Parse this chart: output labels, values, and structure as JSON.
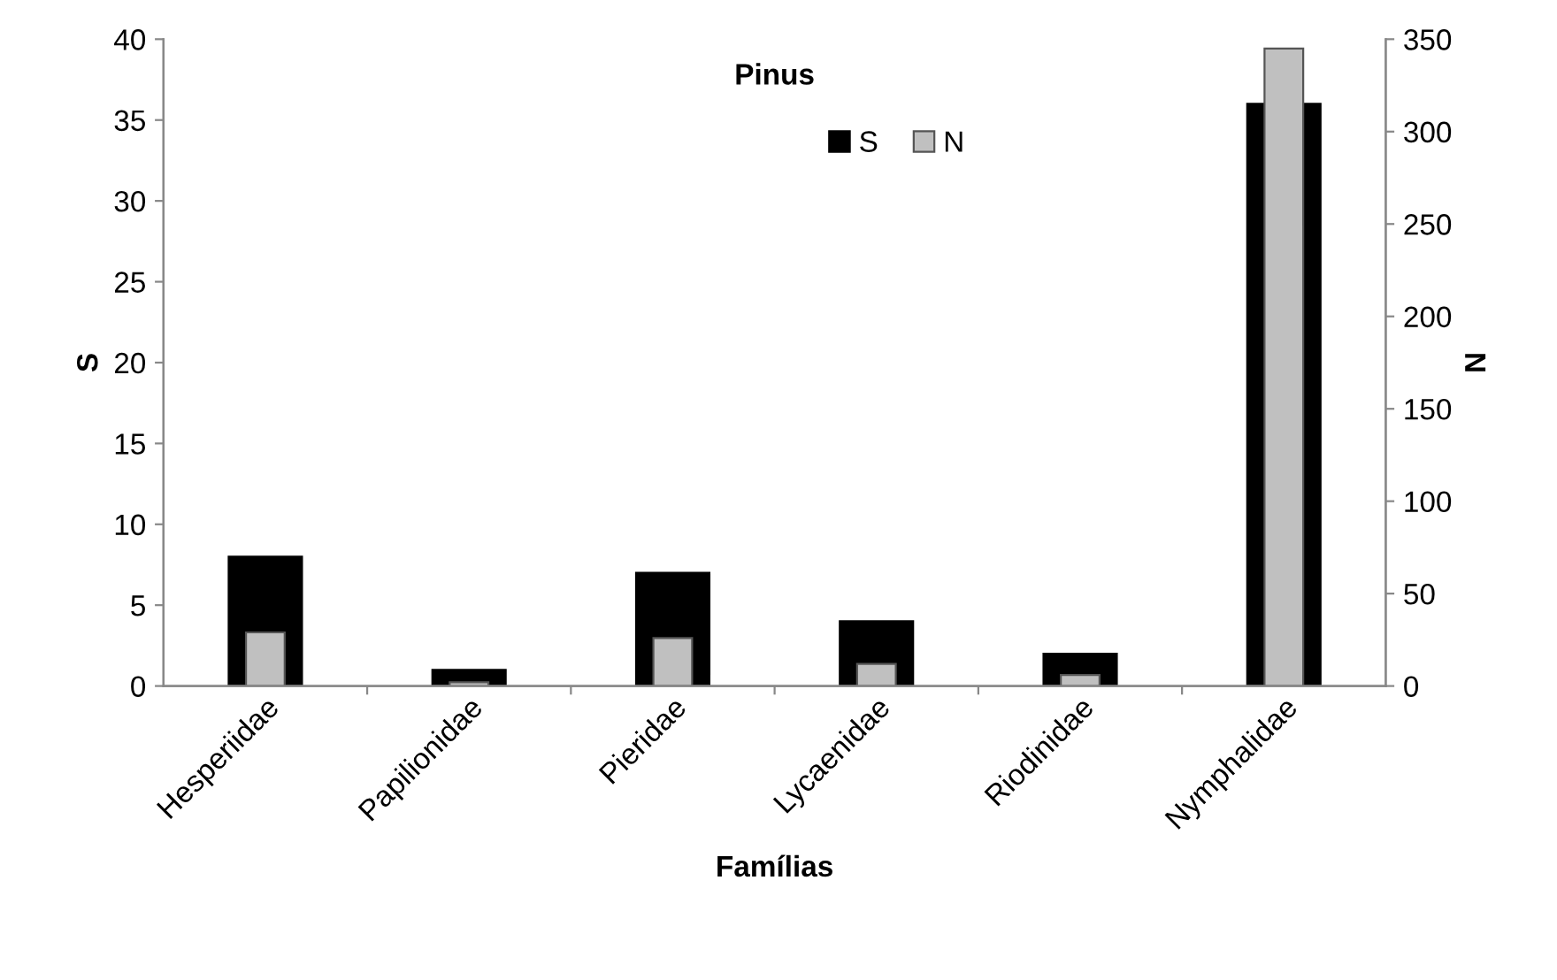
{
  "chart_data": {
    "type": "bar",
    "title": "Pinus",
    "xlabel": "Famílias",
    "ylabel": "S",
    "y2label": "N",
    "categories": [
      "Hesperiidae",
      "Papilionidae",
      "Pieridae",
      "Lycaenidae",
      "Riodinidae",
      "Nymphalidae"
    ],
    "series": [
      {
        "name": "S",
        "color": "#000000",
        "values": [
          8,
          1,
          7,
          4,
          2,
          36
        ]
      },
      {
        "name": "N",
        "color": "#c0c0c0",
        "axis": "y2",
        "values": [
          29,
          2,
          26,
          12,
          6,
          345
        ]
      }
    ],
    "ylim": [
      0,
      40
    ],
    "yticks": [
      0,
      5,
      10,
      15,
      20,
      25,
      30,
      35,
      40
    ],
    "y2lim": [
      0,
      350
    ],
    "y2ticks": [
      0,
      50,
      100,
      150,
      200,
      250,
      300,
      350
    ],
    "grid": false,
    "legend": "top"
  }
}
